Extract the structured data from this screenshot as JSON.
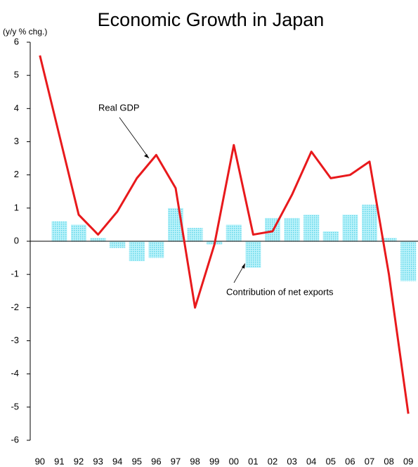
{
  "chart_data": {
    "type": "bar-line",
    "title": "Economic Growth in Japan",
    "y_label": "(y/y % chg.)",
    "categories": [
      "90",
      "91",
      "92",
      "93",
      "94",
      "95",
      "96",
      "97",
      "98",
      "99",
      "00",
      "01",
      "02",
      "03",
      "04",
      "05",
      "06",
      "07",
      "08",
      "09"
    ],
    "series": [
      {
        "name": "Contribution of net exports",
        "type": "bar",
        "color": "#7fe3f0",
        "values": [
          0,
          0.6,
          0.5,
          0.1,
          -0.2,
          -0.6,
          -0.5,
          1.0,
          0.4,
          -0.1,
          0.5,
          -0.8,
          0.7,
          0.7,
          0.8,
          0.3,
          0.8,
          1.1,
          0.1,
          -1.2
        ]
      },
      {
        "name": "Real GDP",
        "type": "line",
        "color": "#e8191c",
        "values": [
          5.6,
          3.2,
          0.8,
          0.2,
          0.9,
          1.9,
          2.6,
          1.6,
          -2.0,
          -0.1,
          2.9,
          0.2,
          0.3,
          1.4,
          2.7,
          1.9,
          2.0,
          2.4,
          -1.0,
          -5.2
        ]
      }
    ],
    "ylim": [
      -6,
      6
    ],
    "yticks": [
      -6,
      -5,
      -4,
      -3,
      -2,
      -1,
      0,
      1,
      2,
      3,
      4,
      5,
      6
    ]
  }
}
